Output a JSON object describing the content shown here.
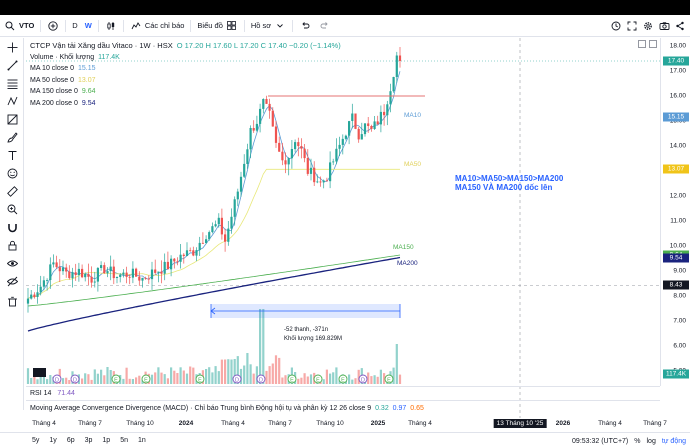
{
  "toolbar": {
    "symbol": "VTO",
    "interval": "D",
    "interval_flag": "W",
    "indicators_label": "Các chỉ báo",
    "chart_type_label": "Biểu đồ",
    "profile_label": "Hồ sơ"
  },
  "legend": {
    "title": "CTCP Vận tải Xăng dầu Vitaco · 1W · HSX",
    "ohlc": "O 17.20  H 17.60  L 17.20  C 17.40  −0.20 (−1.14%)",
    "volume_label": "Volume · Khối lượng",
    "volume_value": "117.4K",
    "ma10_label": "MA 10 close 0",
    "ma10_value": "15.15",
    "ma50_label": "MA 50 close 0",
    "ma50_value": "13.07",
    "ma150_label": "MA 150 close 0",
    "ma150_value": "9.64",
    "ma200_label": "MA 200 close 0",
    "ma200_value": "9.54"
  },
  "colors": {
    "up": "#26a69a",
    "down": "#ef5350",
    "ma10": "#5b9bd5",
    "ma50": "#e8e87a",
    "ma150": "#4caf50",
    "ma200": "#1a237e",
    "accent": "#2962ff"
  },
  "price_axis": {
    "ticks": [
      "18.00",
      "17.00",
      "16.00",
      "15.00",
      "14.00",
      "13.00",
      "12.00",
      "11.00",
      "10.00",
      "9.00",
      "8.00",
      "7.00",
      "6.00",
      "5.00"
    ],
    "badges": [
      {
        "text": "17.40",
        "value": 17.4,
        "color": "#26a69a"
      },
      {
        "text": "15.15",
        "value": 15.15,
        "color": "#5b9bd5"
      },
      {
        "text": "13.07",
        "value": 13.07,
        "color": "#f0c419"
      },
      {
        "text": "9.64",
        "value": 9.64,
        "color": "#4caf50"
      },
      {
        "text": "9.54",
        "value": 9.54,
        "color": "#1a237e"
      },
      {
        "text": "8.43",
        "value": 8.43,
        "color": "#131722"
      },
      {
        "text": "117.4K",
        "value": 4.9,
        "color": "#26a69a"
      }
    ]
  },
  "time_axis": {
    "ticks": [
      "Tháng 4",
      "Tháng 7",
      "Tháng 10",
      "2024",
      "Tháng 4",
      "Tháng 7",
      "Tháng 10",
      "2025",
      "Tháng 4",
      "2026",
      "Tháng 4",
      "Tháng 7"
    ],
    "crosshair_label": "13 Tháng 10 '25"
  },
  "ma_labels": {
    "ma10": "MA10",
    "ma50": "MA50",
    "ma150": "MA150",
    "ma200": "MA200"
  },
  "note": {
    "line1": "MA10>MA50>MA150>MA200",
    "line2": "MA150 VÀ MA200 dốc lên"
  },
  "measure": {
    "line1": "-52 thanh, -371n",
    "line2": "Khối lượng 169.829M"
  },
  "rsi": {
    "label": "RSI 14",
    "value": "71.44"
  },
  "macd": {
    "label": "Moving Average Convergence Divergence (MACD) · Chỉ báo Trung bình Động hội tụ và phân kỳ",
    "params": "12 26 close 9",
    "v1": "0.32",
    "v2": "0.97",
    "v3": "0.65"
  },
  "bottom": {
    "ranges": [
      "5y",
      "1y",
      "6p",
      "3p",
      "1p",
      "5n",
      "1n"
    ],
    "clock": "09:53:32 (UTC+7)",
    "percent": "%",
    "log": "log",
    "auto": "tự động"
  },
  "chart_data": {
    "type": "candlestick",
    "description_series": [
      {
        "name": "MA10",
        "last": 15.15
      },
      {
        "name": "MA50",
        "last": 13.07
      },
      {
        "name": "MA150",
        "last": 9.64
      },
      {
        "name": "MA200",
        "last": 9.54
      }
    ],
    "ylim": [
      4.6,
      18.3
    ],
    "last_close": 17.4,
    "resistance": 16.0
  }
}
